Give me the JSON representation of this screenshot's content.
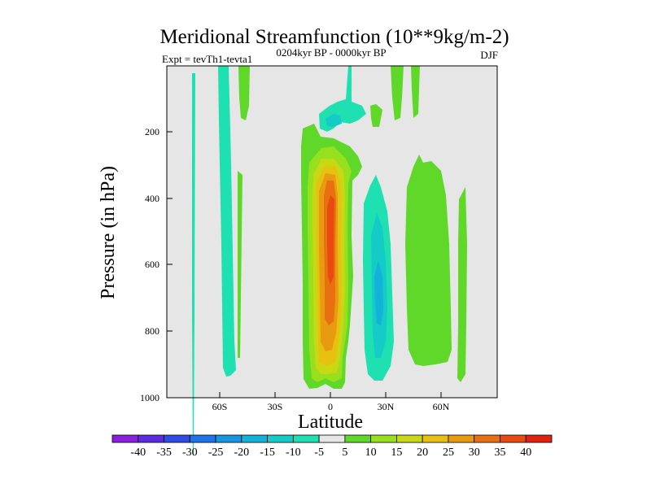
{
  "chart_data": {
    "type": "heatmap",
    "title": "Meridional Streamfunction (10**9kg/m-2)",
    "experiment_label": "Expt = tevTh1-tevta1",
    "period_label": "0204kyr BP - 0000kyr BP",
    "season_label": "DJF",
    "xlabel": "Latitude",
    "ylabel": "Pressure (in hPa)",
    "x_ticks": [
      "60S",
      "30S",
      "0",
      "30N",
      "60N"
    ],
    "y_ticks": [
      "200",
      "400",
      "600",
      "800",
      "1000"
    ],
    "colorbar_labels": [
      "-40",
      "-35",
      "-30",
      "-25",
      "-20",
      "-15",
      "-10",
      "-5",
      "5",
      "10",
      "15",
      "20",
      "25",
      "30",
      "35",
      "40"
    ],
    "colorbar_colors": [
      "#8c1fe0",
      "#5a2be0",
      "#2f4ce6",
      "#1e74e8",
      "#1496e3",
      "#12b2da",
      "#14cbc8",
      "#1ee0b0",
      "#e6e6e6",
      "#5fd82a",
      "#98e01e",
      "#c8d814",
      "#e8c010",
      "#e89a10",
      "#e87010",
      "#e84a10",
      "#e02210"
    ],
    "features": [
      {
        "name": "positive-cell-equator",
        "sign": "positive",
        "peak_value": 35,
        "lat_range": [
          "-10",
          "5"
        ],
        "pressure_range": [
          "250",
          "950"
        ]
      },
      {
        "name": "negative-cell-north",
        "sign": "negative",
        "peak_value": -15,
        "lat_range": [
          "20",
          "35"
        ],
        "pressure_range": [
          "300",
          "950"
        ]
      },
      {
        "name": "negative-band-southern",
        "sign": "negative",
        "peak_value": -5,
        "lat_range": [
          "65S",
          "55S"
        ],
        "pressure_range": [
          "0",
          "950"
        ]
      },
      {
        "name": "positive-band-midlat-north",
        "sign": "positive",
        "peak_value": 5,
        "lat_range": [
          "40",
          "55"
        ],
        "pressure_range": [
          "250",
          "900"
        ]
      }
    ]
  }
}
